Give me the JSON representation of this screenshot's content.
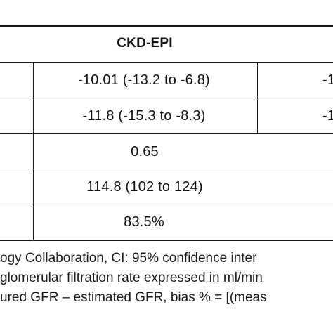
{
  "table": {
    "header": {
      "ckd_epi": "CKD-EPI"
    },
    "rows": [
      {
        "ckd_epi": "-10.01 (-13.2 to -6.8)",
        "next_col": "-1"
      },
      {
        "ckd_epi": "-11.8 (-15.3 to -8.3)",
        "next_col": "-1"
      },
      {
        "ckd_epi": "0.65",
        "next_col": ""
      },
      {
        "ckd_epi": "114.8 (102 to 124)",
        "next_col": ""
      },
      {
        "ckd_epi": "83.5%",
        "next_col": ""
      }
    ]
  },
  "footnotes": [
    "ogy Collaboration, CI: 95% confidence inter",
    "glomerular filtration rate expressed in ml/min",
    "ured GFR – estimated GFR, bias % = [(meas"
  ]
}
